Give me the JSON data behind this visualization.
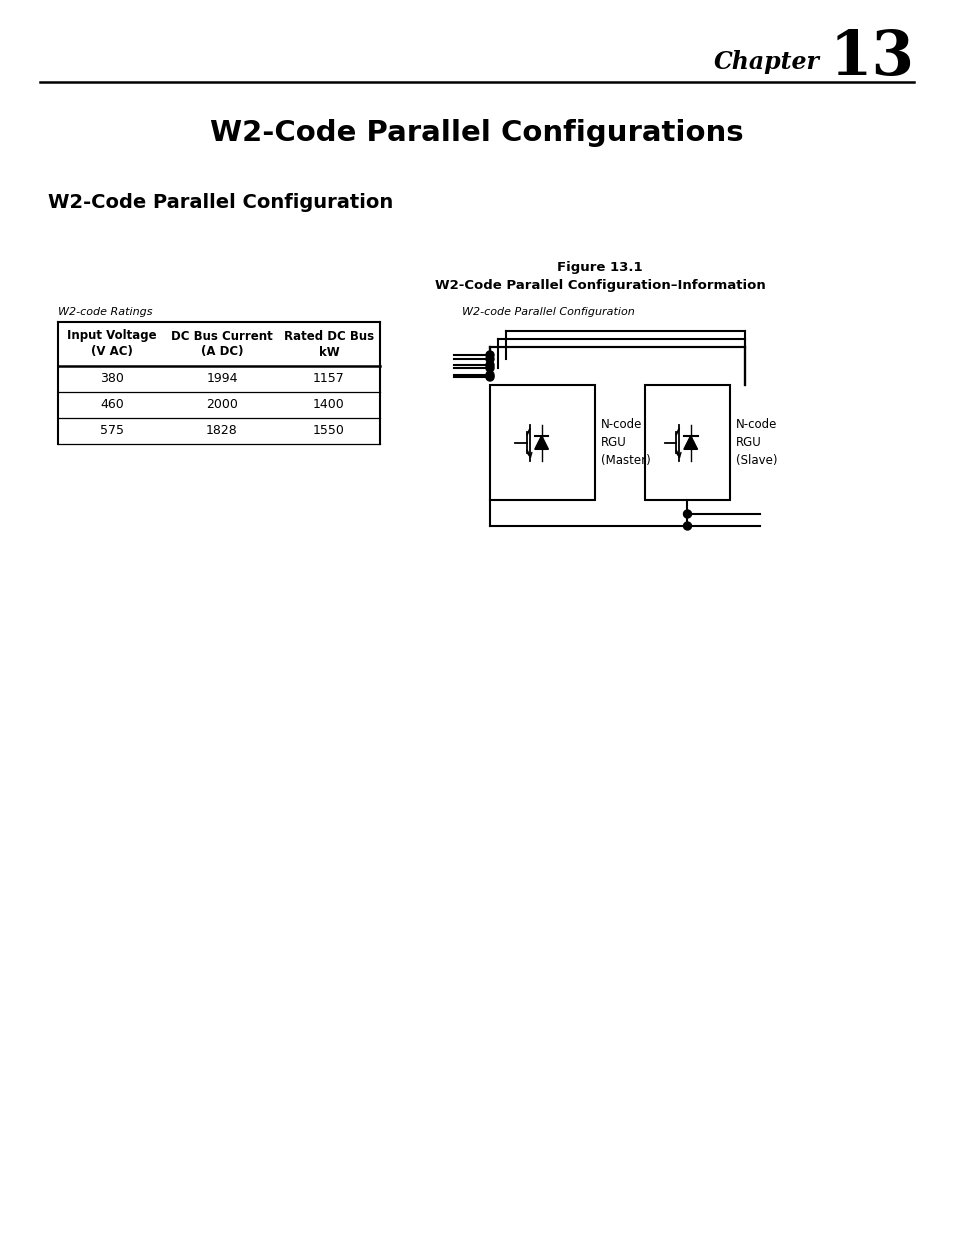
{
  "chapter_label": "Chapter",
  "chapter_number": "13",
  "page_title": "W2-Code Parallel Configurations",
  "section_title": "W2-Code Parallel Configuration",
  "figure_label": "Figure 13.1",
  "figure_title": "W2-Code Parallel Configuration–Information",
  "table_caption": "W2-code Ratings",
  "diagram_caption": "W2-code Parallel Configuration",
  "table_headers": [
    "Input Voltage\n(V AC)",
    "DC Bus Current\n(A DC)",
    "Rated DC Bus\nkW"
  ],
  "table_data": [
    [
      "380",
      "1994",
      "1157"
    ],
    [
      "460",
      "2000",
      "1400"
    ],
    [
      "575",
      "1828",
      "1550"
    ]
  ],
  "master_label": "N-code\nRGU\n(Master)",
  "slave_label": "N-code\nRGU\n(Slave)",
  "bg_color": "#ffffff",
  "text_color": "#000000",
  "line_color": "#000000"
}
